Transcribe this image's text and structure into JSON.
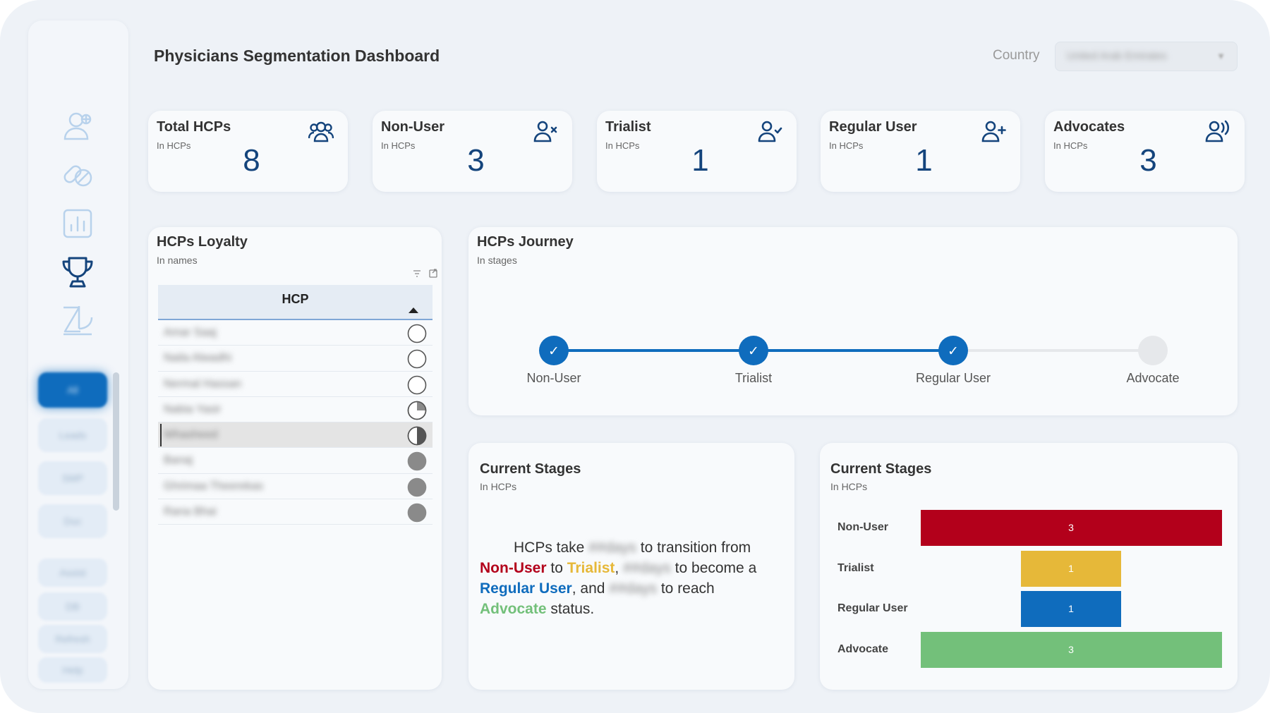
{
  "header": {
    "title": "Physicians Segmentation Dashboard",
    "country_label": "Country",
    "country_value": "United Arab Emirates"
  },
  "sidebar": {
    "icons": [
      "user-plus-icon",
      "pills-icon",
      "bar-chart-icon",
      "trophy-icon",
      "logo-icon"
    ],
    "active_icon": "trophy-icon",
    "buttons": [
      "All",
      "Leads",
      "SMP",
      "Doc",
      "Assist",
      "DB",
      "Refresh",
      "Help"
    ],
    "active_button": "All"
  },
  "kpis": [
    {
      "title": "Total HCPs",
      "subtitle": "In HCPs",
      "value": "8",
      "icon": "group-icon"
    },
    {
      "title": "Non-User",
      "subtitle": "In HCPs",
      "value": "3",
      "icon": "user-x-icon"
    },
    {
      "title": "Trialist",
      "subtitle": "In HCPs",
      "value": "1",
      "icon": "user-check-icon"
    },
    {
      "title": "Regular User",
      "subtitle": "In HCPs",
      "value": "1",
      "icon": "user-plus-icon"
    },
    {
      "title": "Advocates",
      "subtitle": "In HCPs",
      "value": "3",
      "icon": "user-voice-icon"
    }
  ],
  "loyalty": {
    "title": "HCPs Loyalty",
    "subtitle": "In names",
    "column_header": "HCP",
    "rows": [
      {
        "name": "Amar Saaj",
        "level": 0,
        "selected": false
      },
      {
        "name": "Naila Alwadhi",
        "level": 0,
        "selected": false
      },
      {
        "name": "Nermal Hassan",
        "level": 0,
        "selected": false
      },
      {
        "name": "Nabia Yasir",
        "level": 0.25,
        "selected": false
      },
      {
        "name": "Whasheed",
        "level": 0.5,
        "selected": true
      },
      {
        "name": "Banaj",
        "level": 1,
        "selected": false
      },
      {
        "name": "Ghrimaa Theerekas",
        "level": 1,
        "selected": false
      },
      {
        "name": "Rana Bhai",
        "level": 1,
        "selected": false
      }
    ],
    "colors": {
      "filled": "#8a8a8a",
      "outline": "#555555"
    }
  },
  "journey": {
    "title": "HCPs Journey",
    "subtitle": "In stages",
    "stages": [
      {
        "label": "Non-User",
        "done": true
      },
      {
        "label": "Trialist",
        "done": true
      },
      {
        "label": "Regular User",
        "done": true
      },
      {
        "label": "Advocate",
        "done": false
      }
    ],
    "check_mark": "✓",
    "colors": {
      "done": "#0f6cbd",
      "pending": "#e6e8eb"
    }
  },
  "narrative": {
    "title": "Current Stages",
    "subtitle": "In HCPs",
    "p1": "HCPs take",
    "t1": "##days",
    "p2": "to transition from",
    "s1": "Non-User",
    "p3": "to",
    "s2": "Trialist",
    "p4": ",",
    "t2": "##days",
    "p5": "to become a",
    "s3": "Regular User",
    "p6": ", and",
    "t3": "##days",
    "p7": "to reach",
    "s4": "Advocate",
    "p8": "status."
  },
  "chart_data": {
    "type": "bar",
    "orientation": "horizontal",
    "title": "Current Stages",
    "subtitle": "In HCPs",
    "categories": [
      "Non-User",
      "Trialist",
      "Regular User",
      "Advocate"
    ],
    "values": [
      3,
      1,
      1,
      3
    ],
    "colors": [
      "#b3001b",
      "#e6b839",
      "#0f6cbd",
      "#73c07a"
    ],
    "xlim": [
      0,
      3
    ],
    "grid": false,
    "bar_alignment": "centered"
  }
}
